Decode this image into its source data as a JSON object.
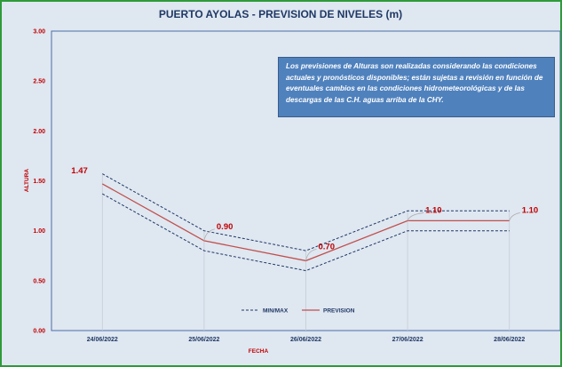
{
  "note": "Los previsiones de Alturas son realizadas considerando las condiciones actuales y pronósticos disponibles; están sujetas a revisión en función de eventuales cambios en las condiciones hidrometeorológicas y de las descargas de las C.H. aguas arriba de la CHY.",
  "chart_data": {
    "type": "line",
    "title": "PUERTO AYOLAS - PREVISION DE NIVELES (m)",
    "xlabel": "FECHA",
    "ylabel": "ALTURA",
    "categories": [
      "24/06/2022",
      "25/06/2022",
      "26/06/2022",
      "27/06/2022",
      "28/06/2022"
    ],
    "ylim": [
      0,
      3
    ],
    "yticks": [
      "0.00",
      "0.50",
      "1.00",
      "1.50",
      "2.00",
      "2.50",
      "3.00"
    ],
    "grid": false,
    "legend": "bottom-center",
    "series": [
      {
        "name": "MIN/MAX",
        "role": "max",
        "style": "dashed",
        "color": "#1f3864",
        "values": [
          1.57,
          1.0,
          0.8,
          1.2,
          1.2
        ]
      },
      {
        "name": "MIN/MAX",
        "role": "min",
        "style": "dashed",
        "color": "#1f3864",
        "values": [
          1.37,
          0.8,
          0.6,
          1.0,
          1.0
        ]
      },
      {
        "name": "PREVISION",
        "role": "forecast",
        "style": "solid",
        "color": "#c0504d",
        "values": [
          1.47,
          0.9,
          0.7,
          1.1,
          1.1
        ]
      }
    ],
    "data_labels": [
      "1.47",
      "0.90",
      "0.70",
      "1.10",
      "1.10"
    ]
  }
}
